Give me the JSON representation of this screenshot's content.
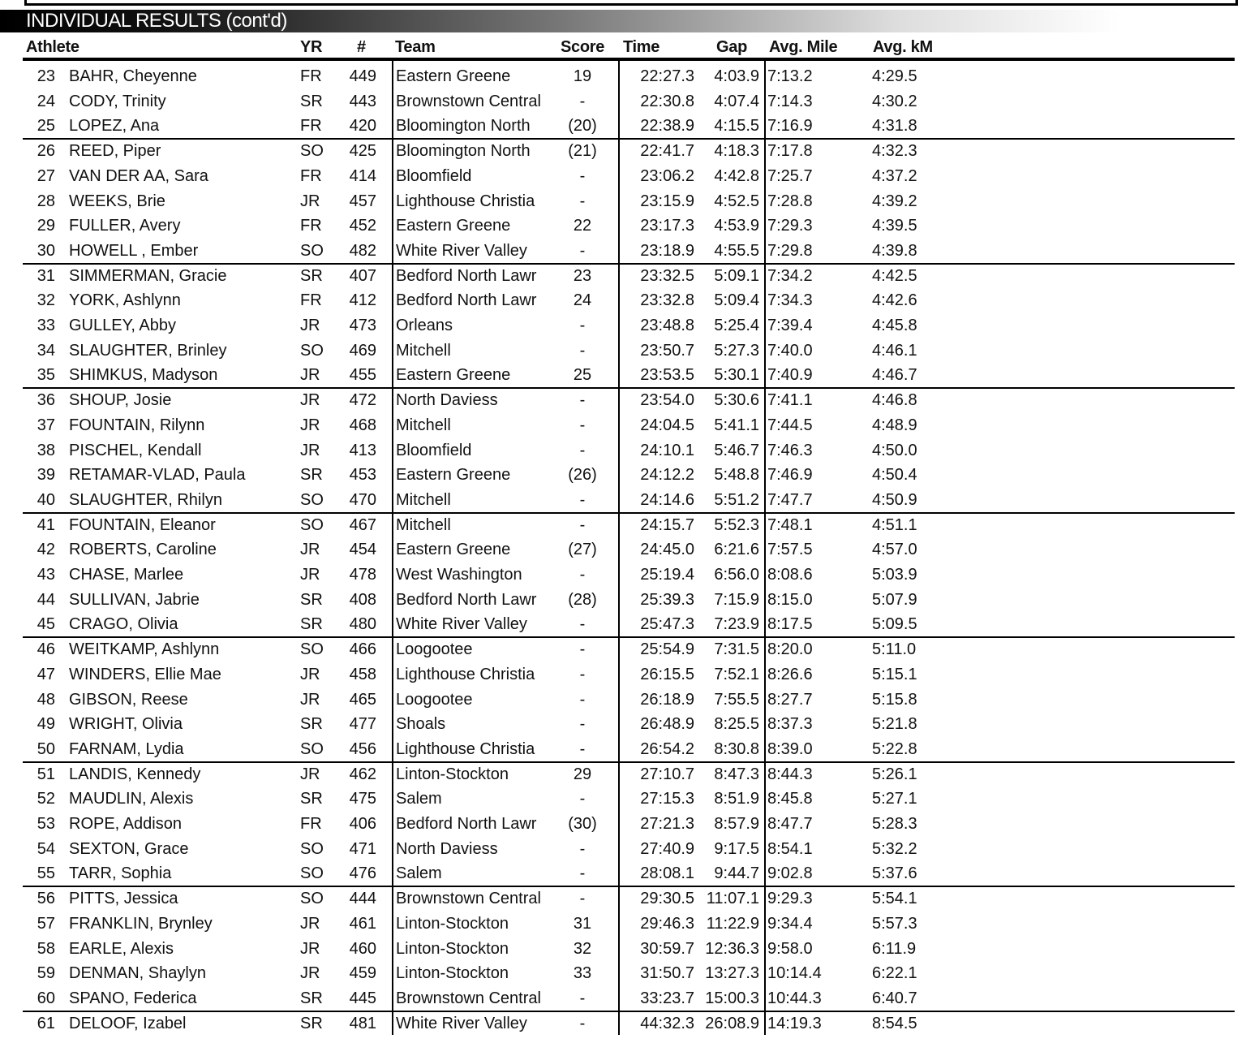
{
  "title": "INDIVIDUAL RESULTS (cont'd)",
  "columns": {
    "athlete": "Athlete",
    "yr": "YR",
    "num": "#",
    "team": "Team",
    "score": "Score",
    "time": "Time",
    "gap": "Gap",
    "avg_mile": "Avg. Mile",
    "avg_km": "Avg. kM"
  },
  "rows": [
    [
      "23",
      "BAHR, Cheyenne",
      "FR",
      "449",
      "Eastern Greene",
      "19",
      "22:27.3",
      "4:03.9",
      "7:13.2",
      "4:29.5"
    ],
    [
      "24",
      "CODY, Trinity",
      "SR",
      "443",
      "Brownstown Central",
      "-",
      "22:30.8",
      "4:07.4",
      "7:14.3",
      "4:30.2"
    ],
    [
      "25",
      "LOPEZ, Ana",
      "FR",
      "420",
      "Bloomington North",
      "(20)",
      "22:38.9",
      "4:15.5",
      "7:16.9",
      "4:31.8"
    ],
    [
      "26",
      "REED, Piper",
      "SO",
      "425",
      "Bloomington North",
      "(21)",
      "22:41.7",
      "4:18.3",
      "7:17.8",
      "4:32.3"
    ],
    [
      "27",
      "VAN DER AA, Sara",
      "FR",
      "414",
      "Bloomfield",
      "-",
      "23:06.2",
      "4:42.8",
      "7:25.7",
      "4:37.2"
    ],
    [
      "28",
      "WEEKS, Brie",
      "JR",
      "457",
      "Lighthouse Christia",
      "-",
      "23:15.9",
      "4:52.5",
      "7:28.8",
      "4:39.2"
    ],
    [
      "29",
      "FULLER, Avery",
      "FR",
      "452",
      "Eastern Greene",
      "22",
      "23:17.3",
      "4:53.9",
      "7:29.3",
      "4:39.5"
    ],
    [
      "30",
      "HOWELL , Ember",
      "SO",
      "482",
      "White River Valley",
      "-",
      "23:18.9",
      "4:55.5",
      "7:29.8",
      "4:39.8"
    ],
    [
      "31",
      "SIMMERMAN, Gracie",
      "SR",
      "407",
      "Bedford North Lawr",
      "23",
      "23:32.5",
      "5:09.1",
      "7:34.2",
      "4:42.5"
    ],
    [
      "32",
      "YORK, Ashlynn",
      "FR",
      "412",
      "Bedford North Lawr",
      "24",
      "23:32.8",
      "5:09.4",
      "7:34.3",
      "4:42.6"
    ],
    [
      "33",
      "GULLEY, Abby",
      "JR",
      "473",
      "Orleans",
      "-",
      "23:48.8",
      "5:25.4",
      "7:39.4",
      "4:45.8"
    ],
    [
      "34",
      "SLAUGHTER, Brinley",
      "SO",
      "469",
      "Mitchell",
      "-",
      "23:50.7",
      "5:27.3",
      "7:40.0",
      "4:46.1"
    ],
    [
      "35",
      "SHIMKUS, Madyson",
      "JR",
      "455",
      "Eastern Greene",
      "25",
      "23:53.5",
      "5:30.1",
      "7:40.9",
      "4:46.7"
    ],
    [
      "36",
      "SHOUP, Josie",
      "JR",
      "472",
      "North Daviess",
      "-",
      "23:54.0",
      "5:30.6",
      "7:41.1",
      "4:46.8"
    ],
    [
      "37",
      "FOUNTAIN, Rilynn",
      "JR",
      "468",
      "Mitchell",
      "-",
      "24:04.5",
      "5:41.1",
      "7:44.5",
      "4:48.9"
    ],
    [
      "38",
      "PISCHEL, Kendall",
      "JR",
      "413",
      "Bloomfield",
      "-",
      "24:10.1",
      "5:46.7",
      "7:46.3",
      "4:50.0"
    ],
    [
      "39",
      "RETAMAR-VLAD, Paula",
      "SR",
      "453",
      "Eastern Greene",
      "(26)",
      "24:12.2",
      "5:48.8",
      "7:46.9",
      "4:50.4"
    ],
    [
      "40",
      "SLAUGHTER, Rhilyn",
      "SO",
      "470",
      "Mitchell",
      "-",
      "24:14.6",
      "5:51.2",
      "7:47.7",
      "4:50.9"
    ],
    [
      "41",
      "FOUNTAIN, Eleanor",
      "SO",
      "467",
      "Mitchell",
      "-",
      "24:15.7",
      "5:52.3",
      "7:48.1",
      "4:51.1"
    ],
    [
      "42",
      "ROBERTS, Caroline",
      "JR",
      "454",
      "Eastern Greene",
      "(27)",
      "24:45.0",
      "6:21.6",
      "7:57.5",
      "4:57.0"
    ],
    [
      "43",
      "CHASE, Marlee",
      "JR",
      "478",
      "West Washington",
      "-",
      "25:19.4",
      "6:56.0",
      "8:08.6",
      "5:03.9"
    ],
    [
      "44",
      "SULLIVAN, Jabrie",
      "SR",
      "408",
      "Bedford North Lawr",
      "(28)",
      "25:39.3",
      "7:15.9",
      "8:15.0",
      "5:07.9"
    ],
    [
      "45",
      "CRAGO, Olivia",
      "SR",
      "480",
      "White River Valley",
      "-",
      "25:47.3",
      "7:23.9",
      "8:17.5",
      "5:09.5"
    ],
    [
      "46",
      "WEITKAMP, Ashlynn",
      "SO",
      "466",
      "Loogootee",
      "-",
      "25:54.9",
      "7:31.5",
      "8:20.0",
      "5:11.0"
    ],
    [
      "47",
      "WINDERS, Ellie Mae",
      "JR",
      "458",
      "Lighthouse Christia",
      "-",
      "26:15.5",
      "7:52.1",
      "8:26.6",
      "5:15.1"
    ],
    [
      "48",
      "GIBSON, Reese",
      "JR",
      "465",
      "Loogootee",
      "-",
      "26:18.9",
      "7:55.5",
      "8:27.7",
      "5:15.8"
    ],
    [
      "49",
      "WRIGHT, Olivia",
      "SR",
      "477",
      "Shoals",
      "-",
      "26:48.9",
      "8:25.5",
      "8:37.3",
      "5:21.8"
    ],
    [
      "50",
      "FARNAM, Lydia",
      "SO",
      "456",
      "Lighthouse Christia",
      "-",
      "26:54.2",
      "8:30.8",
      "8:39.0",
      "5:22.8"
    ],
    [
      "51",
      "LANDIS, Kennedy",
      "JR",
      "462",
      "Linton-Stockton",
      "29",
      "27:10.7",
      "8:47.3",
      "8:44.3",
      "5:26.1"
    ],
    [
      "52",
      "MAUDLIN, Alexis",
      "SR",
      "475",
      "Salem",
      "-",
      "27:15.3",
      "8:51.9",
      "8:45.8",
      "5:27.1"
    ],
    [
      "53",
      "ROPE, Addison",
      "FR",
      "406",
      "Bedford North Lawr",
      "(30)",
      "27:21.3",
      "8:57.9",
      "8:47.7",
      "5:28.3"
    ],
    [
      "54",
      "SEXTON, Grace",
      "SO",
      "471",
      "North Daviess",
      "-",
      "27:40.9",
      "9:17.5",
      "8:54.1",
      "5:32.2"
    ],
    [
      "55",
      "TARR, Sophia",
      "SO",
      "476",
      "Salem",
      "-",
      "28:08.1",
      "9:44.7",
      "9:02.8",
      "5:37.6"
    ],
    [
      "56",
      "PITTS, Jessica",
      "SO",
      "444",
      "Brownstown Central",
      "-",
      "29:30.5",
      "11:07.1",
      "9:29.3",
      "5:54.1"
    ],
    [
      "57",
      "FRANKLIN, Brynley",
      "JR",
      "461",
      "Linton-Stockton",
      "31",
      "29:46.3",
      "11:22.9",
      "9:34.4",
      "5:57.3"
    ],
    [
      "58",
      "EARLE, Alexis",
      "JR",
      "460",
      "Linton-Stockton",
      "32",
      "30:59.7",
      "12:36.3",
      "9:58.0",
      "6:11.9"
    ],
    [
      "59",
      "DENMAN, Shaylyn",
      "JR",
      "459",
      "Linton-Stockton",
      "33",
      "31:50.7",
      "13:27.3",
      "10:14.4",
      "6:22.1"
    ],
    [
      "60",
      "SPANO, Federica",
      "SR",
      "445",
      "Brownstown Central",
      "-",
      "33:23.7",
      "15:00.3",
      "10:44.3",
      "6:40.7"
    ],
    [
      "61",
      "DELOOF, Izabel",
      "SR",
      "481",
      "White River Valley",
      "-",
      "44:32.3",
      "26:08.9",
      "14:19.3",
      "8:54.5"
    ]
  ]
}
